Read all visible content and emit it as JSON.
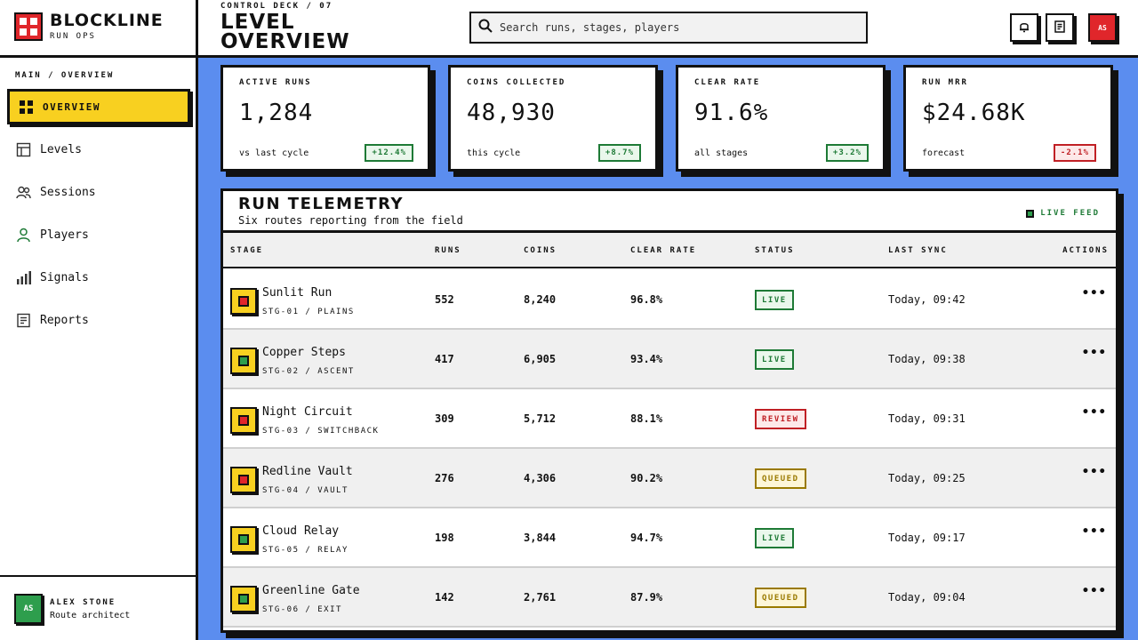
{
  "brand": {
    "name": "BLOCKLINE",
    "sub": "RUN OPS"
  },
  "nav": {
    "section": "MAIN / OVERVIEW",
    "items": [
      {
        "label": "OVERVIEW",
        "icon": "grid-icon",
        "active": true
      },
      {
        "label": "Levels",
        "icon": "table-icon"
      },
      {
        "label": "Sessions",
        "icon": "users-icon"
      },
      {
        "label": "Players",
        "icon": "user-icon"
      },
      {
        "label": "Signals",
        "icon": "bar-chart-icon"
      },
      {
        "label": "Reports",
        "icon": "report-icon"
      }
    ]
  },
  "user": {
    "initials": "AS",
    "name": "ALEX STONE",
    "role": "Route architect"
  },
  "header": {
    "kicker": "CONTROL DECK / 07",
    "title": "LEVEL OVERVIEW",
    "avatar": "AS"
  },
  "search": {
    "placeholder": "Search runs, stages, players"
  },
  "kpis": [
    {
      "label": "ACTIVE RUNS",
      "value": "1,284",
      "foot": "vs last cycle",
      "delta": "+12.4%",
      "trend": "up"
    },
    {
      "label": "COINS COLLECTED",
      "value": "48,930",
      "foot": "this cycle",
      "delta": "+8.7%",
      "trend": "up"
    },
    {
      "label": "CLEAR RATE",
      "value": "91.6%",
      "foot": "all stages",
      "delta": "+3.2%",
      "trend": "up"
    },
    {
      "label": "RUN MRR",
      "value": "$24.68K",
      "foot": "forecast",
      "delta": "-2.1%",
      "trend": "down"
    }
  ],
  "panel": {
    "title": "RUN TELEMETRY",
    "subtitle": "Six routes reporting from the field",
    "live": "LIVE FEED",
    "columns": [
      "STAGE",
      "RUNS",
      "COINS",
      "CLEAR RATE",
      "STATUS",
      "LAST SYNC",
      "ACTIONS"
    ],
    "rows": [
      {
        "name": "Sunlit Run",
        "code": "STG-01 / PLAINS",
        "runs": "552",
        "coins": "8,240",
        "clear": "96.8%",
        "status": "LIVE",
        "sync": "Today, 09:42",
        "dot": "#e0262b"
      },
      {
        "name": "Copper Steps",
        "code": "STG-02 / ASCENT",
        "runs": "417",
        "coins": "6,905",
        "clear": "93.4%",
        "status": "LIVE",
        "sync": "Today, 09:38",
        "dot": "#2e9e4d"
      },
      {
        "name": "Night Circuit",
        "code": "STG-03 / SWITCHBACK",
        "runs": "309",
        "coins": "5,712",
        "clear": "88.1%",
        "status": "REVIEW",
        "sync": "Today, 09:31",
        "dot": "#e0262b"
      },
      {
        "name": "Redline Vault",
        "code": "STG-04 / VAULT",
        "runs": "276",
        "coins": "4,306",
        "clear": "90.2%",
        "status": "QUEUED",
        "sync": "Today, 09:25",
        "dot": "#e0262b"
      },
      {
        "name": "Cloud Relay",
        "code": "STG-05 / RELAY",
        "runs": "198",
        "coins": "3,844",
        "clear": "94.7%",
        "status": "LIVE",
        "sync": "Today, 09:17",
        "dot": "#2e9e4d"
      },
      {
        "name": "Greenline Gate",
        "code": "STG-06 / EXIT",
        "runs": "142",
        "coins": "2,761",
        "clear": "87.9%",
        "status": "QUEUED",
        "sync": "Today, 09:04",
        "dot": "#2e9e4d"
      }
    ]
  }
}
